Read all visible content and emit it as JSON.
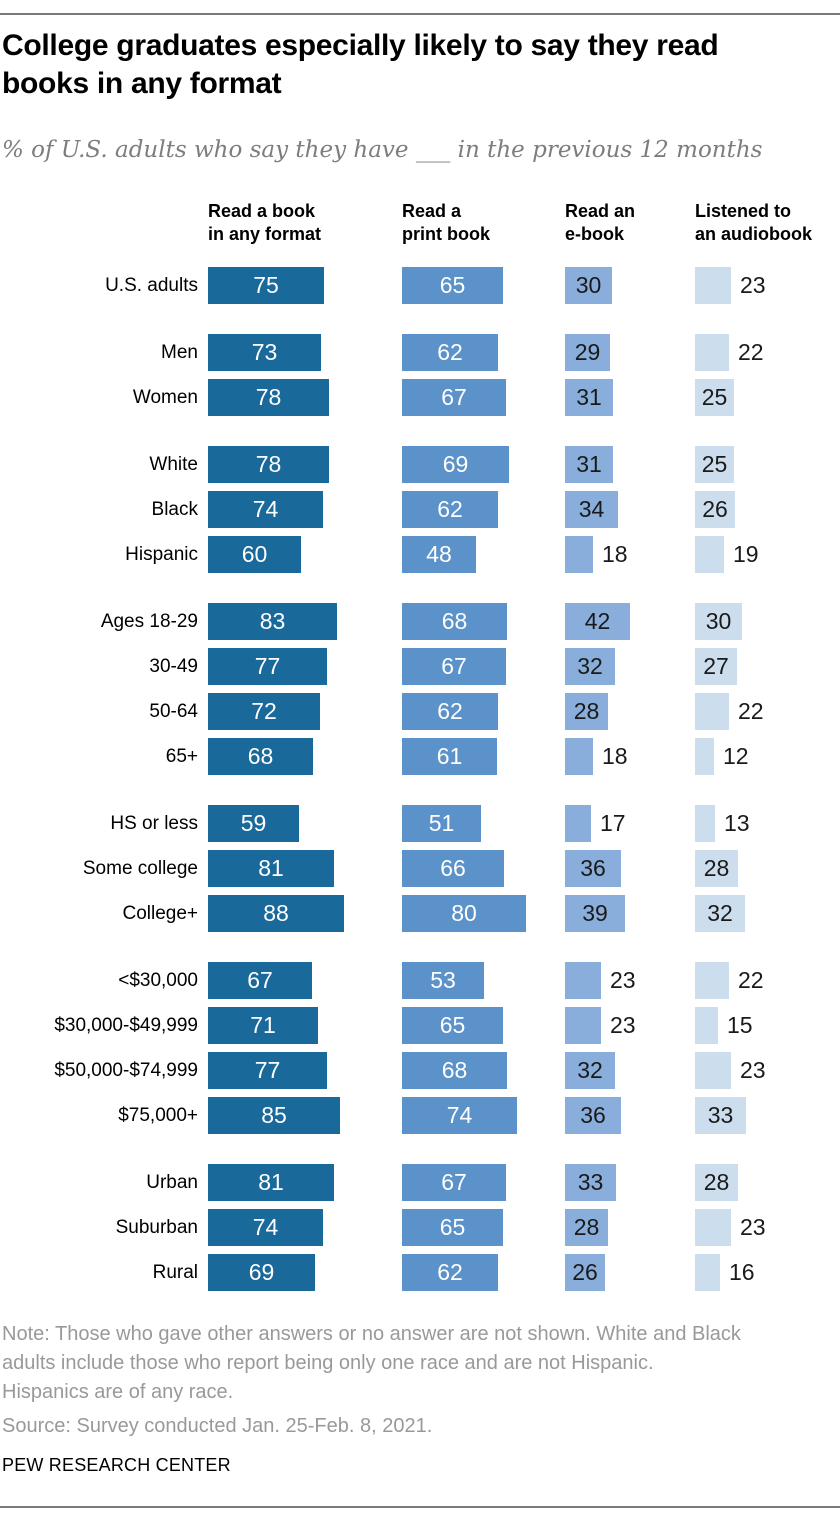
{
  "header": {
    "title_lines": [
      "College graduates especially likely to say they read",
      "books in any format"
    ],
    "subtitle": "% of U.S. adults who say they have ___ in the previous 12 months"
  },
  "chart_data": {
    "type": "bar",
    "orientation": "horizontal",
    "title": "College graduates especially likely to say they read books in any format",
    "subtitle": "% of U.S. adults who say they have ___ in the previous 12 months",
    "value_unit": "%",
    "value_range": [
      0,
      100
    ],
    "series": [
      {
        "name": "Read a book in any format",
        "header_lines": [
          "Read a book",
          "in any format"
        ],
        "color": "#19699B",
        "value_label_color": "#ffffff"
      },
      {
        "name": "Read a print book",
        "header_lines": [
          "Read a",
          "print book"
        ],
        "color": "#5B92C9",
        "value_label_color": "#ffffff"
      },
      {
        "name": "Read an e-book",
        "header_lines": [
          "Read an",
          "e-book"
        ],
        "color": "#89AEDB",
        "value_label_color": "#1a1a1a"
      },
      {
        "name": "Listened to an audiobook",
        "header_lines": [
          "Listened to",
          "an audiobook"
        ],
        "color": "#CCDDEE",
        "value_label_color": "#1a1a1a"
      }
    ],
    "groups": [
      {
        "name": "total",
        "rows": [
          {
            "label": "U.S. adults",
            "values": [
              75,
              65,
              30,
              23
            ]
          }
        ]
      },
      {
        "name": "gender",
        "rows": [
          {
            "label": "Men",
            "values": [
              73,
              62,
              29,
              22
            ]
          },
          {
            "label": "Women",
            "values": [
              78,
              67,
              31,
              25
            ]
          }
        ]
      },
      {
        "name": "race-ethnicity",
        "rows": [
          {
            "label": "White",
            "values": [
              78,
              69,
              31,
              25
            ]
          },
          {
            "label": "Black",
            "values": [
              74,
              62,
              34,
              26
            ]
          },
          {
            "label": "Hispanic",
            "values": [
              60,
              48,
              18,
              19
            ]
          }
        ]
      },
      {
        "name": "age",
        "rows": [
          {
            "label": "Ages 18-29",
            "values": [
              83,
              68,
              42,
              30
            ]
          },
          {
            "label": "30-49",
            "values": [
              77,
              67,
              32,
              27
            ]
          },
          {
            "label": "50-64",
            "values": [
              72,
              62,
              28,
              22
            ]
          },
          {
            "label": "65+",
            "values": [
              68,
              61,
              18,
              12
            ]
          }
        ]
      },
      {
        "name": "education",
        "rows": [
          {
            "label": "HS or less",
            "values": [
              59,
              51,
              17,
              13
            ]
          },
          {
            "label": "Some college",
            "values": [
              81,
              66,
              36,
              28
            ]
          },
          {
            "label": "College+",
            "values": [
              88,
              80,
              39,
              32
            ]
          }
        ]
      },
      {
        "name": "income",
        "rows": [
          {
            "label": "<$30,000",
            "values": [
              67,
              53,
              23,
              22
            ]
          },
          {
            "label": "$30,000-$49,999",
            "values": [
              71,
              65,
              23,
              15
            ]
          },
          {
            "label": "$50,000-$74,999",
            "values": [
              77,
              68,
              32,
              23
            ]
          },
          {
            "label": "$75,000+",
            "values": [
              85,
              74,
              36,
              33
            ]
          }
        ]
      },
      {
        "name": "community",
        "rows": [
          {
            "label": "Urban",
            "values": [
              81,
              67,
              33,
              28
            ]
          },
          {
            "label": "Suburban",
            "values": [
              74,
              65,
              28,
              23
            ]
          },
          {
            "label": "Rural",
            "values": [
              69,
              62,
              26,
              16
            ]
          }
        ]
      }
    ]
  },
  "footer": {
    "note_lines": [
      "Note: Those who gave other answers or no answer are not shown. White and Black",
      "adults include those who report being only one race and are not Hispanic.",
      "Hispanics are of any race."
    ],
    "source": "Source: Survey conducted Jan. 25-Feb. 8, 2021.",
    "brand": "PEW RESEARCH CENTER"
  }
}
